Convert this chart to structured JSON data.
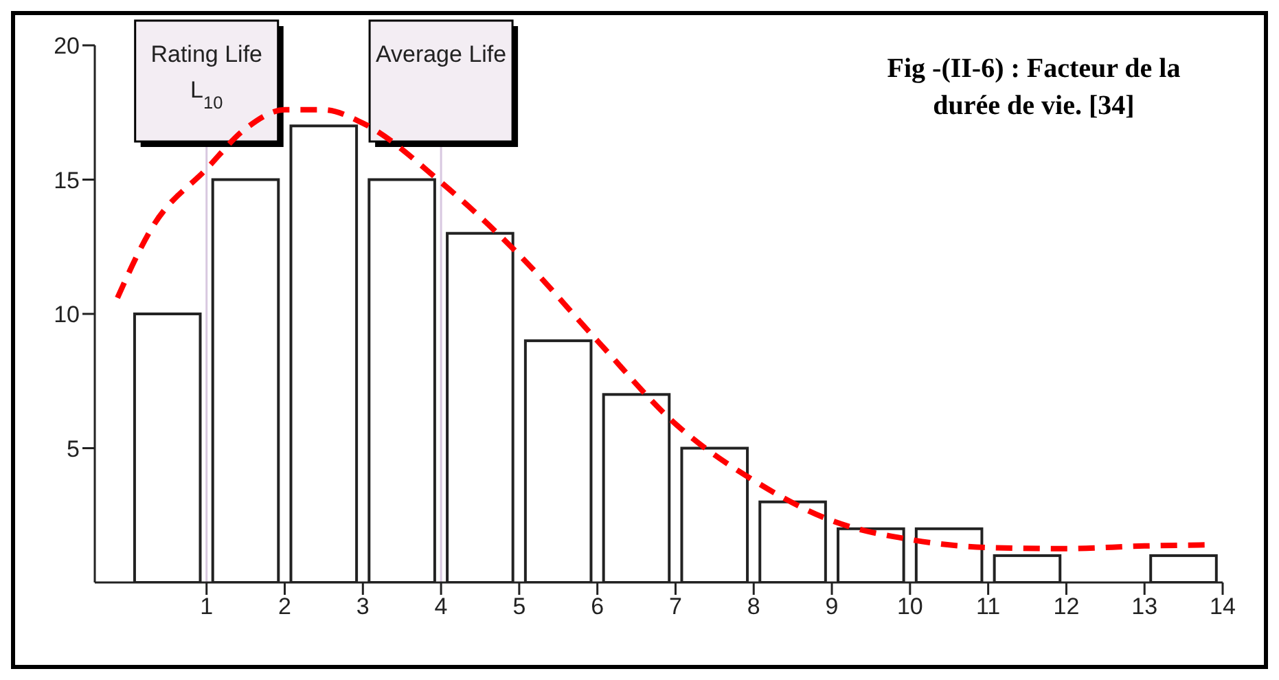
{
  "chart_data": {
    "type": "histogram",
    "title": "Fig -(II-6) : Facteur de la durée de vie. [34]",
    "bins": [
      0,
      1,
      2,
      3,
      4,
      5,
      6,
      7,
      8,
      9,
      10,
      11,
      12,
      13,
      14
    ],
    "values": [
      10,
      15,
      17,
      15,
      13,
      9,
      7,
      5,
      3,
      2,
      2,
      1,
      0,
      1
    ],
    "color": "#ffffff",
    "series": [
      {
        "type": "line",
        "color": "#ff0000",
        "line_style": "dashed",
        "x": [
          -0.14,
          0.3,
          1,
          1.5,
          2,
          2.5,
          3,
          4,
          5,
          6,
          7,
          8,
          9,
          10,
          11,
          12,
          13,
          13.8
        ],
        "values": [
          10.6,
          13.2,
          15.4,
          16.9,
          17.6,
          17.6,
          17.1,
          14.9,
          12.2,
          9.0,
          5.9,
          3.8,
          2.3,
          1.6,
          1.3,
          1.26,
          1.36,
          1.4
        ]
      }
    ],
    "ref_lines": [
      {
        "axis": "x",
        "value": 1,
        "label": "Rating Life L$_{10}$",
        "color": "#d8c8e0"
      },
      {
        "axis": "x",
        "value": 4,
        "label": "Average Life",
        "color": "#d8c8e0"
      }
    ],
    "xlim": [
      -0.43,
      14
    ],
    "xticks": [
      1,
      2,
      3,
      4,
      5,
      6,
      7,
      8,
      9,
      10,
      11,
      12,
      13,
      14
    ],
    "ylim": [
      0,
      20
    ],
    "yticks": [
      5,
      10,
      15,
      20
    ],
    "grid": false,
    "legend": false,
    "marker": "none"
  }
}
